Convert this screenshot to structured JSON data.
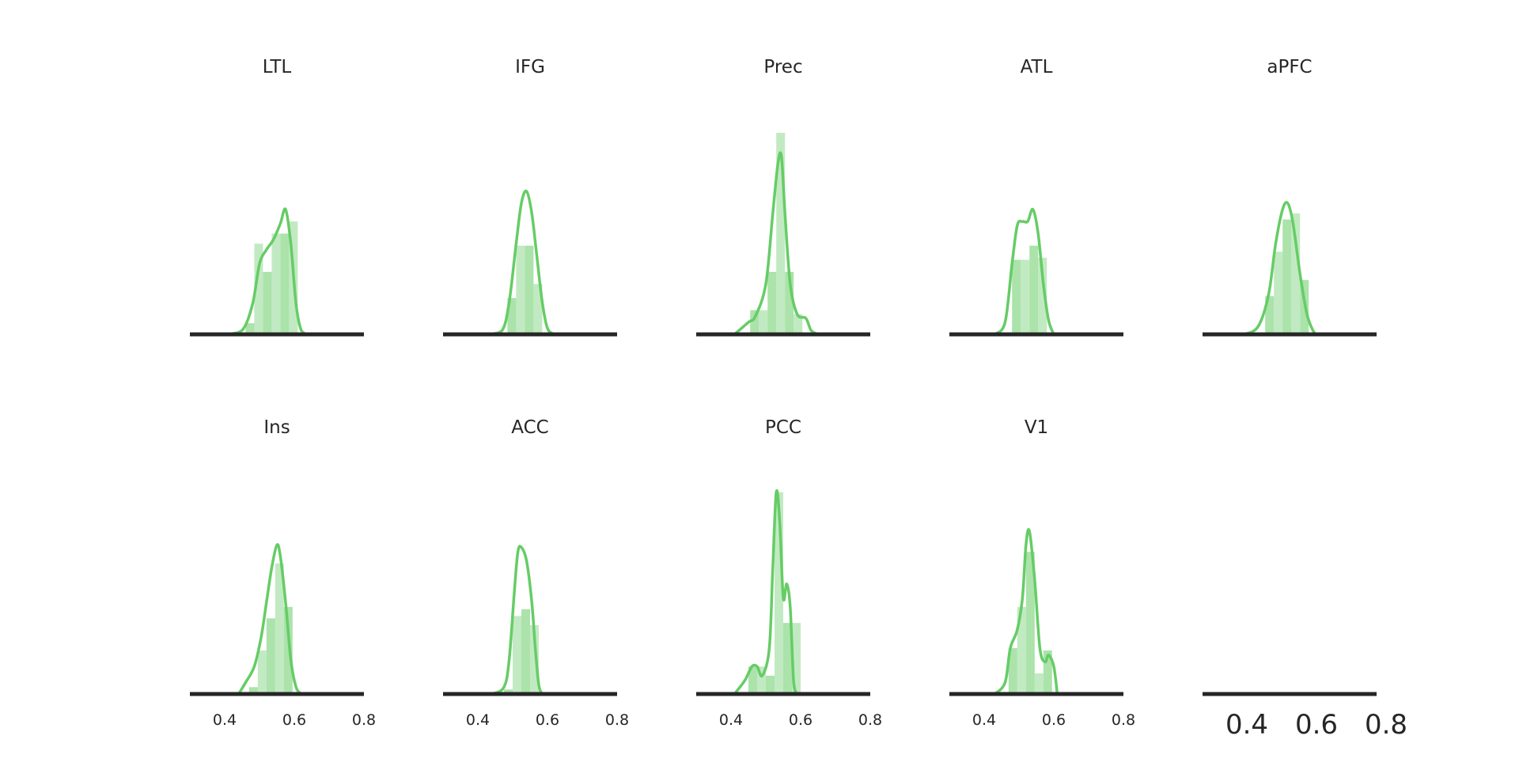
{
  "chart_data": {
    "type": "histogram-kde-grid",
    "color_line": "#66cc66",
    "color_fill": "#8fd98f",
    "color_axis": "#262626",
    "xlim": [
      0.3,
      0.8
    ],
    "xticks": [
      "0.4",
      "0.6",
      "0.8"
    ],
    "panels": [
      {
        "title": "LTL",
        "bins": [
          [
            0.46,
            0.485,
            0.055
          ],
          [
            0.485,
            0.51,
            0.45
          ],
          [
            0.51,
            0.535,
            0.31
          ],
          [
            0.535,
            0.56,
            0.5
          ],
          [
            0.56,
            0.585,
            0.5
          ],
          [
            0.585,
            0.61,
            0.56
          ]
        ],
        "kde": [
          [
            0.4,
            0.0
          ],
          [
            0.45,
            0.02
          ],
          [
            0.48,
            0.15
          ],
          [
            0.5,
            0.35
          ],
          [
            0.52,
            0.42
          ],
          [
            0.54,
            0.47
          ],
          [
            0.56,
            0.55
          ],
          [
            0.575,
            0.62
          ],
          [
            0.59,
            0.45
          ],
          [
            0.605,
            0.15
          ],
          [
            0.62,
            0.02
          ],
          [
            0.64,
            0.0
          ]
        ]
      },
      {
        "title": "IFG",
        "bins": [
          [
            0.485,
            0.51,
            0.18
          ],
          [
            0.51,
            0.535,
            0.44
          ],
          [
            0.535,
            0.56,
            0.44
          ],
          [
            0.56,
            0.585,
            0.25
          ]
        ],
        "kde": [
          [
            0.43,
            0.0
          ],
          [
            0.47,
            0.02
          ],
          [
            0.49,
            0.16
          ],
          [
            0.51,
            0.45
          ],
          [
            0.525,
            0.65
          ],
          [
            0.54,
            0.71
          ],
          [
            0.555,
            0.6
          ],
          [
            0.57,
            0.38
          ],
          [
            0.585,
            0.16
          ],
          [
            0.6,
            0.03
          ],
          [
            0.62,
            0.0
          ]
        ]
      },
      {
        "title": "Prec",
        "bins": [
          [
            0.455,
            0.48,
            0.12
          ],
          [
            0.48,
            0.505,
            0.12
          ],
          [
            0.505,
            0.53,
            0.31
          ],
          [
            0.53,
            0.555,
            1.0
          ],
          [
            0.555,
            0.58,
            0.31
          ],
          [
            0.58,
            0.605,
            0.1
          ]
        ],
        "kde": [
          [
            0.41,
            0.0
          ],
          [
            0.45,
            0.06
          ],
          [
            0.47,
            0.09
          ],
          [
            0.5,
            0.25
          ],
          [
            0.52,
            0.6
          ],
          [
            0.535,
            0.85
          ],
          [
            0.545,
            0.88
          ],
          [
            0.555,
            0.6
          ],
          [
            0.57,
            0.25
          ],
          [
            0.59,
            0.1
          ],
          [
            0.615,
            0.08
          ],
          [
            0.63,
            0.02
          ],
          [
            0.65,
            0.0
          ]
        ]
      },
      {
        "title": "ATL",
        "bins": [
          [
            0.48,
            0.505,
            0.37
          ],
          [
            0.505,
            0.53,
            0.37
          ],
          [
            0.53,
            0.555,
            0.44
          ],
          [
            0.555,
            0.58,
            0.38
          ]
        ],
        "kde": [
          [
            0.43,
            0.0
          ],
          [
            0.46,
            0.06
          ],
          [
            0.48,
            0.35
          ],
          [
            0.495,
            0.54
          ],
          [
            0.51,
            0.56
          ],
          [
            0.525,
            0.56
          ],
          [
            0.54,
            0.62
          ],
          [
            0.555,
            0.5
          ],
          [
            0.57,
            0.25
          ],
          [
            0.585,
            0.07
          ],
          [
            0.6,
            0.0
          ]
        ]
      },
      {
        "title": "aPFC",
        "bins": [
          [
            0.48,
            0.505,
            0.19
          ],
          [
            0.505,
            0.53,
            0.41
          ],
          [
            0.53,
            0.555,
            0.57
          ],
          [
            0.555,
            0.58,
            0.6
          ],
          [
            0.58,
            0.605,
            0.27
          ]
        ],
        "kde": [
          [
            0.42,
            0.0
          ],
          [
            0.46,
            0.04
          ],
          [
            0.49,
            0.2
          ],
          [
            0.51,
            0.45
          ],
          [
            0.53,
            0.62
          ],
          [
            0.545,
            0.65
          ],
          [
            0.56,
            0.55
          ],
          [
            0.58,
            0.3
          ],
          [
            0.6,
            0.1
          ],
          [
            0.62,
            0.01
          ],
          [
            0.63,
            0.0
          ]
        ]
      },
      {
        "title": "Ins",
        "bins": [
          [
            0.47,
            0.495,
            0.03
          ],
          [
            0.495,
            0.52,
            0.19
          ],
          [
            0.52,
            0.545,
            0.33
          ],
          [
            0.545,
            0.57,
            0.57
          ],
          [
            0.57,
            0.595,
            0.38
          ]
        ],
        "kde": [
          [
            0.44,
            0.0
          ],
          [
            0.46,
            0.05
          ],
          [
            0.485,
            0.12
          ],
          [
            0.505,
            0.25
          ],
          [
            0.52,
            0.4
          ],
          [
            0.535,
            0.55
          ],
          [
            0.55,
            0.65
          ],
          [
            0.56,
            0.6
          ],
          [
            0.575,
            0.4
          ],
          [
            0.59,
            0.15
          ],
          [
            0.605,
            0.03
          ],
          [
            0.62,
            0.0
          ]
        ]
      },
      {
        "title": "ACC",
        "bins": [
          [
            0.475,
            0.5,
            0.02
          ],
          [
            0.5,
            0.525,
            0.34
          ],
          [
            0.525,
            0.55,
            0.37
          ],
          [
            0.55,
            0.575,
            0.3
          ]
        ],
        "kde": [
          [
            0.44,
            0.0
          ],
          [
            0.475,
            0.03
          ],
          [
            0.49,
            0.15
          ],
          [
            0.505,
            0.45
          ],
          [
            0.515,
            0.62
          ],
          [
            0.525,
            0.64
          ],
          [
            0.54,
            0.58
          ],
          [
            0.555,
            0.4
          ],
          [
            0.565,
            0.2
          ],
          [
            0.575,
            0.04
          ],
          [
            0.585,
            0.0
          ]
        ]
      },
      {
        "title": "PCC",
        "bins": [
          [
            0.45,
            0.475,
            0.12
          ],
          [
            0.475,
            0.5,
            0.12
          ],
          [
            0.5,
            0.525,
            0.08
          ],
          [
            0.525,
            0.55,
            0.88
          ],
          [
            0.55,
            0.575,
            0.31
          ],
          [
            0.575,
            0.6,
            0.31
          ]
        ],
        "kde": [
          [
            0.41,
            0.0
          ],
          [
            0.44,
            0.06
          ],
          [
            0.46,
            0.12
          ],
          [
            0.475,
            0.12
          ],
          [
            0.49,
            0.08
          ],
          [
            0.51,
            0.2
          ],
          [
            0.52,
            0.55
          ],
          [
            0.53,
            0.88
          ],
          [
            0.54,
            0.75
          ],
          [
            0.55,
            0.42
          ],
          [
            0.56,
            0.48
          ],
          [
            0.57,
            0.38
          ],
          [
            0.58,
            0.05
          ],
          [
            0.59,
            0.0
          ]
        ]
      },
      {
        "title": "V1",
        "bins": [
          [
            0.47,
            0.495,
            0.2
          ],
          [
            0.495,
            0.52,
            0.38
          ],
          [
            0.52,
            0.545,
            0.62
          ],
          [
            0.545,
            0.57,
            0.09
          ],
          [
            0.57,
            0.595,
            0.19
          ]
        ],
        "kde": [
          [
            0.43,
            0.0
          ],
          [
            0.46,
            0.05
          ],
          [
            0.475,
            0.2
          ],
          [
            0.495,
            0.28
          ],
          [
            0.51,
            0.42
          ],
          [
            0.52,
            0.65
          ],
          [
            0.53,
            0.71
          ],
          [
            0.545,
            0.5
          ],
          [
            0.56,
            0.2
          ],
          [
            0.575,
            0.14
          ],
          [
            0.585,
            0.17
          ],
          [
            0.6,
            0.12
          ],
          [
            0.61,
            0.0
          ]
        ]
      },
      {
        "title": "",
        "bins": [],
        "kde": []
      }
    ]
  }
}
